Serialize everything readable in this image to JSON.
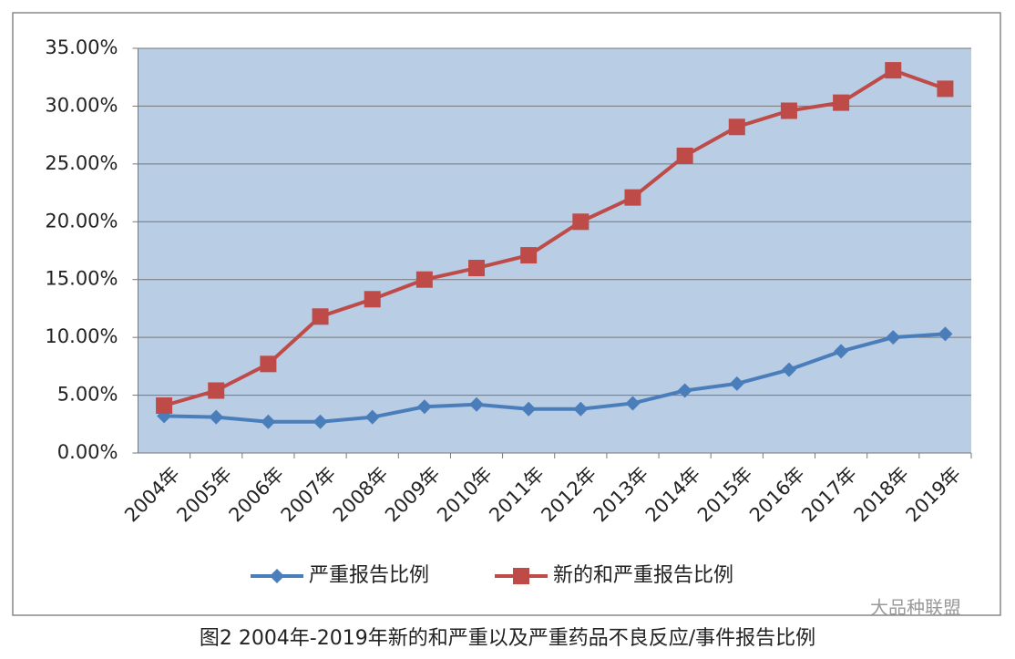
{
  "chart_data": {
    "type": "line",
    "categories": [
      "2004年",
      "2005年",
      "2006年",
      "2007年",
      "2008年",
      "2009年",
      "2010年",
      "2011年",
      "2012年",
      "2013年",
      "2014年",
      "2015年",
      "2016年",
      "2017年",
      "2018年",
      "2019年"
    ],
    "series": [
      {
        "name": "严重报告比例",
        "color": "#4a7ebb",
        "marker": "diamond",
        "values": [
          3.2,
          3.1,
          2.7,
          2.7,
          3.1,
          4.0,
          4.2,
          3.8,
          3.8,
          4.3,
          5.4,
          6.0,
          7.2,
          8.8,
          10.0,
          10.3
        ]
      },
      {
        "name": "新的和严重报告比例",
        "color": "#be4b48",
        "marker": "square",
        "values": [
          4.1,
          5.4,
          7.7,
          11.8,
          13.3,
          15.0,
          16.0,
          17.1,
          20.0,
          22.1,
          25.7,
          28.2,
          29.6,
          30.3,
          33.1,
          31.5
        ]
      }
    ],
    "ylim": [
      0,
      35
    ],
    "yticks": [
      {
        "value": 0,
        "label": "0.00%"
      },
      {
        "value": 5,
        "label": "5.00%"
      },
      {
        "value": 10,
        "label": "10.00%"
      },
      {
        "value": 15,
        "label": "15.00%"
      },
      {
        "value": 20,
        "label": "20.00%"
      },
      {
        "value": 25,
        "label": "25.00%"
      },
      {
        "value": 30,
        "label": "30.00%"
      },
      {
        "value": 35,
        "label": "35.00%"
      }
    ],
    "grid": true,
    "legend": "bottom",
    "plot_background": "#b9cde5"
  },
  "caption": "图2 2004年-2019年新的和严重以及严重药品不良反应/事件报告比例",
  "watermark": "大品种联盟"
}
